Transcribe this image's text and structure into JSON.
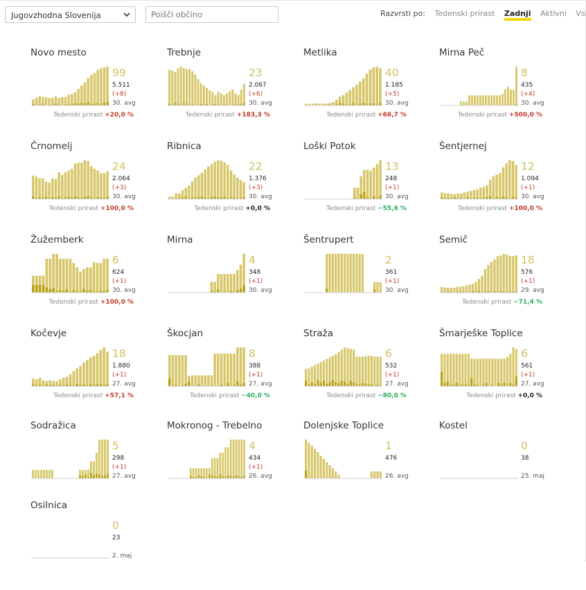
{
  "controls": {
    "region_select": "Jugovzhodna Slovenija",
    "search_placeholder": "Poišči občino",
    "sort_label": "Razvrsti po:",
    "sort_options": [
      "Tedenski prirast",
      "Zadnji",
      "Aktivni",
      "Vsi"
    ],
    "sort_active": "Zadnji"
  },
  "weekly_label": "Tedenski prirast",
  "colors": {
    "bar": "#d6c668",
    "bar_dark": "#b8a10f",
    "up": "#c0392b",
    "down": "#27ae60"
  },
  "chart_data": [
    {
      "type": "bar",
      "title": "Novo mesto",
      "active": "99",
      "total": "5.511",
      "change": "(+8)",
      "date": "30. avg",
      "weekly": "+20,0 %",
      "dir": "up",
      "values": [
        14,
        18,
        22,
        20,
        20,
        18,
        18,
        22,
        18,
        20,
        20,
        26,
        28,
        32,
        40,
        48,
        56,
        66,
        74,
        78,
        86,
        90,
        92,
        94
      ],
      "new": [
        3,
        2,
        2,
        3,
        1,
        2,
        2,
        4,
        2,
        1,
        3,
        2,
        3,
        5,
        4,
        6,
        5,
        7,
        3,
        4,
        5,
        3,
        6,
        8
      ]
    },
    {
      "type": "bar",
      "title": "Trebnje",
      "active": "23",
      "total": "2.067",
      "change": "(+6)",
      "date": "30. avg",
      "weekly": "+183,3 %",
      "dir": "up",
      "values": [
        90,
        88,
        84,
        94,
        98,
        94,
        92,
        92,
        86,
        78,
        66,
        56,
        50,
        44,
        38,
        34,
        26,
        34,
        30,
        26,
        30,
        36,
        40,
        30,
        26,
        40,
        54
      ],
      "new": [
        4,
        2,
        6,
        3,
        2,
        5,
        4,
        2,
        3,
        1,
        2,
        3,
        2,
        4,
        1,
        2,
        3,
        2,
        1,
        3,
        2,
        1,
        2,
        3,
        2,
        4,
        6
      ]
    },
    {
      "type": "bar",
      "title": "Metlika",
      "active": "40",
      "total": "1.185",
      "change": "(+5)",
      "date": "30. avg",
      "weekly": "+66,7 %",
      "dir": "up",
      "values": [
        4,
        4,
        4,
        5,
        4,
        5,
        4,
        6,
        8,
        14,
        22,
        26,
        32,
        38,
        46,
        52,
        60,
        68,
        80,
        90,
        96,
        98,
        94
      ],
      "new": [
        1,
        0,
        1,
        2,
        0,
        1,
        1,
        2,
        1,
        3,
        5,
        4,
        2,
        3,
        5,
        2,
        4,
        6,
        3,
        5,
        4,
        2,
        5
      ]
    },
    {
      "type": "bar",
      "title": "Mirna Peč",
      "active": "8",
      "total": "435",
      "change": "(+4)",
      "date": "30. avg",
      "weekly": "+500,0 %",
      "dir": "up",
      "values": [
        0,
        0,
        0,
        0,
        0,
        0,
        0,
        10,
        10,
        10,
        26,
        26,
        26,
        26,
        26,
        26,
        26,
        26,
        26,
        26,
        26,
        26,
        30,
        42,
        48,
        40,
        40,
        100
      ],
      "new": [
        0,
        0,
        0,
        0,
        0,
        0,
        0,
        1,
        0,
        0,
        2,
        1,
        1,
        0,
        0,
        0,
        0,
        0,
        2,
        1,
        0,
        0,
        1,
        2,
        0,
        0,
        1,
        4
      ]
    },
    {
      "type": "bar",
      "title": "Črnomelj",
      "active": "24",
      "total": "2.064",
      "change": "(+3)",
      "date": "30. avg",
      "weekly": "+100,0 %",
      "dir": "up",
      "values": [
        54,
        52,
        48,
        48,
        40,
        38,
        48,
        46,
        62,
        56,
        62,
        66,
        70,
        82,
        84,
        84,
        90,
        88,
        76,
        70,
        66,
        60,
        60,
        64
      ],
      "new": [
        6,
        2,
        4,
        3,
        5,
        2,
        4,
        3,
        6,
        2,
        4,
        5,
        3,
        6,
        4,
        3,
        5,
        6,
        3,
        2,
        4,
        3,
        2,
        5
      ]
    },
    {
      "type": "bar",
      "title": "Ribnica",
      "active": "22",
      "total": "1.376",
      "change": "(+3)",
      "date": "30. avg",
      "weekly": "+0,0 %",
      "dir": "zero",
      "values": [
        6,
        6,
        14,
        14,
        22,
        28,
        34,
        44,
        54,
        60,
        66,
        74,
        82,
        88,
        94,
        98,
        96,
        92,
        86,
        72,
        62,
        54,
        48,
        42
      ],
      "new": [
        0,
        1,
        2,
        3,
        4,
        6,
        2,
        4,
        3,
        5,
        6,
        4,
        2,
        5,
        6,
        3,
        4,
        5,
        2,
        3,
        4,
        2,
        3,
        4
      ]
    },
    {
      "type": "bar",
      "title": "Loški Potok",
      "active": "13",
      "total": "248",
      "change": "(+1)",
      "date": "30. avg",
      "weekly": "−55,6 %",
      "dir": "down",
      "values": [
        0,
        0,
        0,
        0,
        0,
        0,
        0,
        0,
        0,
        0,
        0,
        0,
        0,
        0,
        0,
        28,
        28,
        56,
        72,
        72,
        70,
        78,
        86,
        96
      ],
      "new": [
        0,
        0,
        0,
        0,
        0,
        0,
        0,
        0,
        0,
        0,
        0,
        0,
        0,
        0,
        0,
        4,
        1,
        12,
        18,
        4,
        2,
        6,
        2,
        8
      ]
    },
    {
      "type": "bar",
      "title": "Šentjernej",
      "active": "12",
      "total": "1.094",
      "change": "(+1)",
      "date": "30. avg",
      "weekly": "+100,0 %",
      "dir": "up",
      "values": [
        16,
        14,
        14,
        12,
        12,
        14,
        14,
        16,
        18,
        20,
        22,
        24,
        28,
        30,
        34,
        48,
        56,
        60,
        64,
        78,
        88,
        96,
        94,
        84
      ],
      "new": [
        4,
        2,
        3,
        2,
        4,
        2,
        3,
        2,
        4,
        2,
        3,
        4,
        2,
        3,
        4,
        6,
        2,
        5,
        3,
        6,
        4,
        2,
        5,
        3
      ]
    },
    {
      "type": "bar",
      "title": "Žužemberk",
      "active": "6",
      "total": "624",
      "change": "(+1)",
      "date": "30. avg",
      "weekly": "+100,0 %",
      "dir": "up",
      "values": [
        40,
        40,
        40,
        40,
        80,
        80,
        92,
        92,
        80,
        80,
        80,
        80,
        70,
        60,
        50,
        56,
        60,
        60,
        72,
        70,
        70,
        80,
        80
      ],
      "new": [
        18,
        18,
        18,
        18,
        12,
        8,
        10,
        4,
        6,
        4,
        8,
        2,
        6,
        4,
        2,
        8,
        4,
        6,
        3,
        2,
        4,
        4,
        6
      ]
    },
    {
      "type": "bar",
      "title": "Mirna",
      "active": "4",
      "total": "348",
      "change": "(+1)",
      "date": "30. avg",
      "weekly": "",
      "dir": "zero",
      "values": [
        0,
        0,
        0,
        0,
        0,
        0,
        0,
        0,
        0,
        0,
        0,
        0,
        0,
        28,
        28,
        48,
        48,
        48,
        48,
        48,
        48,
        58,
        72,
        100
      ],
      "new": [
        0,
        0,
        0,
        0,
        0,
        0,
        0,
        0,
        0,
        0,
        0,
        0,
        0,
        4,
        2,
        8,
        0,
        2,
        0,
        4,
        2,
        6,
        10,
        18
      ]
    },
    {
      "type": "bar",
      "title": "Šentrupert",
      "active": "2",
      "total": "361",
      "change": "(+1)",
      "date": "30. avg",
      "weekly": "",
      "dir": "zero",
      "values": [
        0,
        0,
        0,
        0,
        0,
        0,
        0,
        96,
        96,
        96,
        96,
        96,
        96,
        96,
        96,
        96,
        96,
        96,
        96,
        96,
        0,
        0,
        0,
        26,
        26,
        26
      ],
      "new": [
        0,
        0,
        0,
        0,
        0,
        0,
        0,
        10,
        0,
        0,
        0,
        0,
        0,
        0,
        0,
        0,
        0,
        0,
        0,
        0,
        0,
        0,
        0,
        8,
        0,
        0
      ]
    },
    {
      "type": "bar",
      "title": "Semič",
      "active": "18",
      "total": "576",
      "change": "(+1)",
      "date": "29. avg",
      "weekly": "−71,4 %",
      "dir": "down",
      "values": [
        14,
        12,
        12,
        12,
        12,
        14,
        14,
        16,
        18,
        20,
        22,
        26,
        34,
        42,
        58,
        68,
        76,
        82,
        90,
        92,
        96,
        94,
        90,
        90,
        92
      ],
      "new": [
        2,
        1,
        3,
        2,
        1,
        2,
        3,
        2,
        1,
        2,
        3,
        2,
        4,
        2,
        3,
        4,
        2,
        3,
        2,
        4,
        3,
        2,
        3,
        2,
        3
      ]
    },
    {
      "type": "bar",
      "title": "Kočevje",
      "active": "18",
      "total": "1.880",
      "change": "(+1)",
      "date": "27. avg",
      "weekly": "+57,1 %",
      "dir": "up",
      "values": [
        18,
        16,
        20,
        14,
        12,
        14,
        12,
        12,
        16,
        20,
        22,
        28,
        36,
        42,
        48,
        56,
        62,
        68,
        72,
        78,
        86,
        92,
        82
      ],
      "new": [
        4,
        2,
        3,
        2,
        4,
        2,
        3,
        2,
        3,
        2,
        4,
        3,
        2,
        5,
        3,
        4,
        2,
        5,
        3,
        4,
        5,
        3,
        4
      ]
    },
    {
      "type": "bar",
      "title": "Škocjan",
      "active": "8",
      "total": "388",
      "change": "(+1)",
      "date": "27. avg",
      "weekly": "−40,0 %",
      "dir": "down",
      "values": [
        80,
        80,
        80,
        80,
        80,
        80,
        26,
        28,
        28,
        28,
        28,
        28,
        28,
        28,
        84,
        84,
        84,
        84,
        84,
        84,
        84,
        100,
        100,
        100
      ],
      "new": [
        20,
        2,
        4,
        0,
        2,
        6,
        12,
        0,
        0,
        4,
        0,
        0,
        0,
        2,
        0,
        0,
        4,
        0,
        8,
        0,
        4,
        12,
        4,
        8
      ]
    },
    {
      "type": "bar",
      "title": "Straža",
      "active": "6",
      "total": "532",
      "change": "(+1)",
      "date": "27. avg",
      "weekly": "−80,0 %",
      "dir": "down",
      "values": [
        44,
        46,
        50,
        54,
        58,
        62,
        66,
        70,
        74,
        78,
        82,
        88,
        94,
        100,
        98,
        96,
        94,
        76,
        76,
        76,
        78,
        78,
        78,
        76,
        76,
        76
      ],
      "new": [
        14,
        4,
        10,
        6,
        16,
        8,
        14,
        6,
        10,
        16,
        10,
        8,
        14,
        12,
        6,
        14,
        10,
        6,
        4,
        8,
        6,
        4,
        6,
        2,
        4,
        0
      ]
    },
    {
      "type": "bar",
      "title": "Šmarješke Toplice",
      "active": "6",
      "total": "561",
      "change": "(+1)",
      "date": "27. avg",
      "weekly": "+0,0 %",
      "dir": "zero",
      "values": [
        80,
        80,
        80,
        80,
        80,
        80,
        80,
        80,
        80,
        80,
        68,
        68,
        68,
        68,
        68,
        68,
        68,
        68,
        68,
        68,
        68,
        68,
        72,
        80,
        96,
        92
      ],
      "new": [
        36,
        8,
        12,
        4,
        4,
        8,
        4,
        4,
        4,
        4,
        20,
        4,
        4,
        0,
        4,
        8,
        0,
        4,
        0,
        8,
        4,
        8,
        4,
        8,
        4,
        24
      ]
    },
    {
      "type": "bar",
      "title": "Sodražica",
      "active": "5",
      "total": "298",
      "change": "(+1)",
      "date": "27. avg",
      "weekly": "",
      "dir": "zero",
      "values": [
        22,
        22,
        22,
        22,
        22,
        22,
        22,
        22,
        0,
        0,
        0,
        0,
        0,
        0,
        0,
        0,
        0,
        22,
        22,
        22,
        22,
        44,
        44,
        66,
        100,
        100,
        100,
        100
      ],
      "new": [
        0,
        0,
        0,
        0,
        0,
        0,
        0,
        0,
        0,
        0,
        0,
        0,
        0,
        0,
        0,
        0,
        0,
        8,
        6,
        10,
        4,
        14,
        8,
        12,
        10,
        6,
        8,
        12
      ]
    },
    {
      "type": "bar",
      "title": "Mokronog - Trebelno",
      "active": "4",
      "total": "434",
      "change": "(+1)",
      "date": "26. avg",
      "weekly": "",
      "dir": "zero",
      "values": [
        0,
        0,
        0,
        0,
        0,
        0,
        0,
        0,
        26,
        26,
        26,
        26,
        26,
        26,
        26,
        26,
        52,
        52,
        52,
        66,
        66,
        80,
        80,
        100,
        100,
        100,
        100,
        100,
        100
      ],
      "new": [
        0,
        0,
        0,
        0,
        0,
        0,
        0,
        0,
        6,
        4,
        2,
        8,
        6,
        4,
        2,
        10,
        8,
        6,
        4,
        10,
        6,
        4,
        8,
        6,
        4,
        8,
        6,
        4,
        6
      ]
    },
    {
      "type": "bar",
      "title": "Dolenjske Toplice",
      "active": "1",
      "total": "476",
      "change": "",
      "date": "26. avg",
      "weekly": "",
      "dir": "zero",
      "values": [
        100,
        92,
        84,
        76,
        68,
        58,
        50,
        42,
        34,
        26,
        18,
        10,
        0,
        0,
        0,
        0,
        0,
        0,
        0,
        0,
        0,
        0,
        18,
        18,
        18,
        18
      ],
      "new": [
        20,
        0,
        0,
        0,
        0,
        0,
        0,
        0,
        0,
        0,
        0,
        0,
        0,
        0,
        0,
        0,
        0,
        0,
        0,
        0,
        0,
        0,
        0,
        0,
        0,
        0
      ]
    },
    {
      "type": "bar",
      "title": "Kostel",
      "active": "0",
      "total": "38",
      "change": "",
      "date": "25. maj",
      "weekly": "",
      "dir": "zero",
      "values": [],
      "new": []
    },
    {
      "type": "bar",
      "title": "Osilnica",
      "active": "0",
      "total": "23",
      "change": "",
      "date": "2. maj",
      "weekly": "",
      "dir": "zero",
      "values": [],
      "new": []
    }
  ]
}
